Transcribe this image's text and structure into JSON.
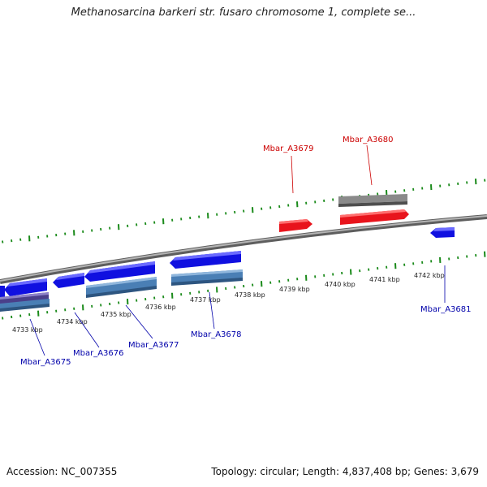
{
  "title": "Methanosarcina barkeri str. fusaro chromosome 1, complete se...",
  "footer": {
    "accession": "Accession: NC_007355",
    "summary": "Topology: circular; Length: 4,837,408 bp; Genes: 3,679"
  },
  "colors": {
    "plus_strand_gene": "#e8141c",
    "minus_strand_gene": "#1010e0",
    "gray_feature": "#6a6a6a",
    "steel_feature": "#4a7fb5",
    "purple_feature": "#4a3f8a",
    "tick": "#1a8a1a",
    "backbone": "#8c8c8c",
    "plus_label": "#cc0000",
    "minus_label": "#0000aa"
  },
  "kbp_labels": [
    "4733 kbp",
    "4734 kbp",
    "4735 kbp",
    "4736 kbp",
    "4737 kbp",
    "4738 kbp",
    "4739 kbp",
    "4740 kbp",
    "4741 kbp",
    "4742 kbp"
  ],
  "genes": [
    {
      "name": "Mbar_A3675",
      "strand": "minus"
    },
    {
      "name": "Mbar_A3676",
      "strand": "minus"
    },
    {
      "name": "Mbar_A3677",
      "strand": "minus"
    },
    {
      "name": "Mbar_A3678",
      "strand": "minus"
    },
    {
      "name": "Mbar_A3679",
      "strand": "plus"
    },
    {
      "name": "Mbar_A3680",
      "strand": "plus"
    },
    {
      "name": "Mbar_A3681",
      "strand": "minus"
    }
  ]
}
